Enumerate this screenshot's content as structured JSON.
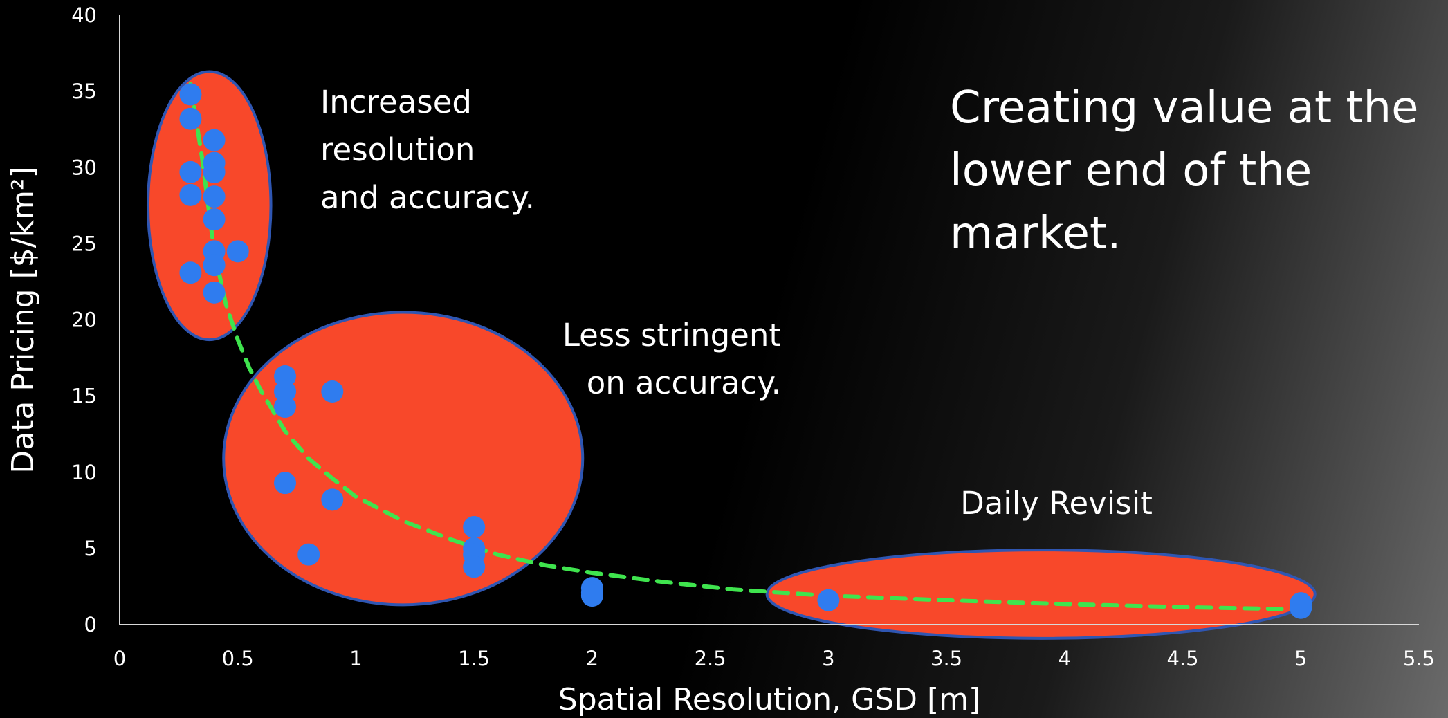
{
  "chart_data": {
    "type": "scatter",
    "xlabel": "Spatial Resolution, GSD [m]",
    "ylabel": "Data Pricing [$/km²]",
    "xlim": [
      0,
      5.5
    ],
    "ylim": [
      0,
      40
    ],
    "x_ticks": [
      "0",
      "0.5",
      "1",
      "1.5",
      "2",
      "2.5",
      "3",
      "3.5",
      "4",
      "4.5",
      "5",
      "5.5"
    ],
    "y_ticks": [
      "0",
      "5",
      "10",
      "15",
      "20",
      "25",
      "30",
      "35",
      "40"
    ],
    "grid": false,
    "headline": [
      "Creating value at the",
      "lower end of the",
      "market."
    ],
    "annotations": [
      {
        "lines": [
          "Increased",
          "resolution",
          "and accuracy."
        ]
      },
      {
        "lines": [
          "Less stringent",
          "on accuracy."
        ]
      },
      {
        "lines": [
          "Daily Revisit"
        ]
      }
    ],
    "clusters": [
      {
        "cx": 0.38,
        "cy": 27.5,
        "rx": 0.26,
        "ry": 8.8
      },
      {
        "cx": 1.2,
        "cy": 10.9,
        "rx": 0.76,
        "ry": 9.6
      },
      {
        "cx": 3.9,
        "cy": 2.0,
        "rx": 1.16,
        "ry": 2.9
      }
    ],
    "series": [
      {
        "values": [
          [
            0.3,
            34.8
          ],
          [
            0.3,
            33.2
          ],
          [
            0.4,
            31.8
          ],
          [
            0.4,
            30.3
          ],
          [
            0.3,
            29.7
          ],
          [
            0.4,
            29.7
          ],
          [
            0.3,
            28.2
          ],
          [
            0.4,
            28.1
          ],
          [
            0.4,
            26.6
          ],
          [
            0.4,
            24.5
          ],
          [
            0.5,
            24.5
          ],
          [
            0.4,
            23.6
          ],
          [
            0.3,
            23.1
          ],
          [
            0.4,
            21.8
          ],
          [
            0.7,
            16.3
          ],
          [
            0.7,
            15.3
          ],
          [
            0.7,
            14.3
          ],
          [
            0.9,
            15.3
          ],
          [
            0.7,
            9.3
          ],
          [
            0.9,
            8.2
          ],
          [
            0.8,
            4.6
          ],
          [
            1.5,
            6.4
          ],
          [
            1.5,
            5.0
          ],
          [
            1.5,
            4.6
          ],
          [
            1.5,
            3.8
          ],
          [
            2.0,
            2.4
          ],
          [
            2.0,
            2.1
          ],
          [
            2.0,
            1.9
          ],
          [
            3.0,
            1.6
          ],
          [
            5.0,
            1.4
          ],
          [
            5.0,
            1.1
          ]
        ]
      }
    ],
    "trendline": {
      "style": "dashed",
      "points": [
        [
          0.3,
          35.5
        ],
        [
          0.35,
          30.5
        ],
        [
          0.4,
          24.5
        ],
        [
          0.45,
          21.0
        ],
        [
          0.5,
          18.7
        ],
        [
          0.55,
          16.8
        ],
        [
          0.6,
          15.3
        ],
        [
          0.7,
          12.7
        ],
        [
          0.8,
          10.9
        ],
        [
          0.9,
          9.6
        ],
        [
          1.0,
          8.4
        ],
        [
          1.2,
          6.8
        ],
        [
          1.4,
          5.6
        ],
        [
          1.6,
          4.6
        ],
        [
          1.8,
          3.9
        ],
        [
          2.0,
          3.4
        ],
        [
          2.3,
          2.8
        ],
        [
          2.6,
          2.3
        ],
        [
          3.0,
          1.9
        ],
        [
          3.5,
          1.6
        ],
        [
          4.0,
          1.35
        ],
        [
          4.5,
          1.15
        ],
        [
          5.0,
          1.0
        ]
      ]
    },
    "colors": {
      "marker": "#2F7CEF",
      "cluster_fill": "#F8482A",
      "cluster_stroke": "#2F56B2",
      "trendline": "#3FE44E",
      "axis": "#d9d9d9",
      "text": "#ffffff"
    }
  }
}
